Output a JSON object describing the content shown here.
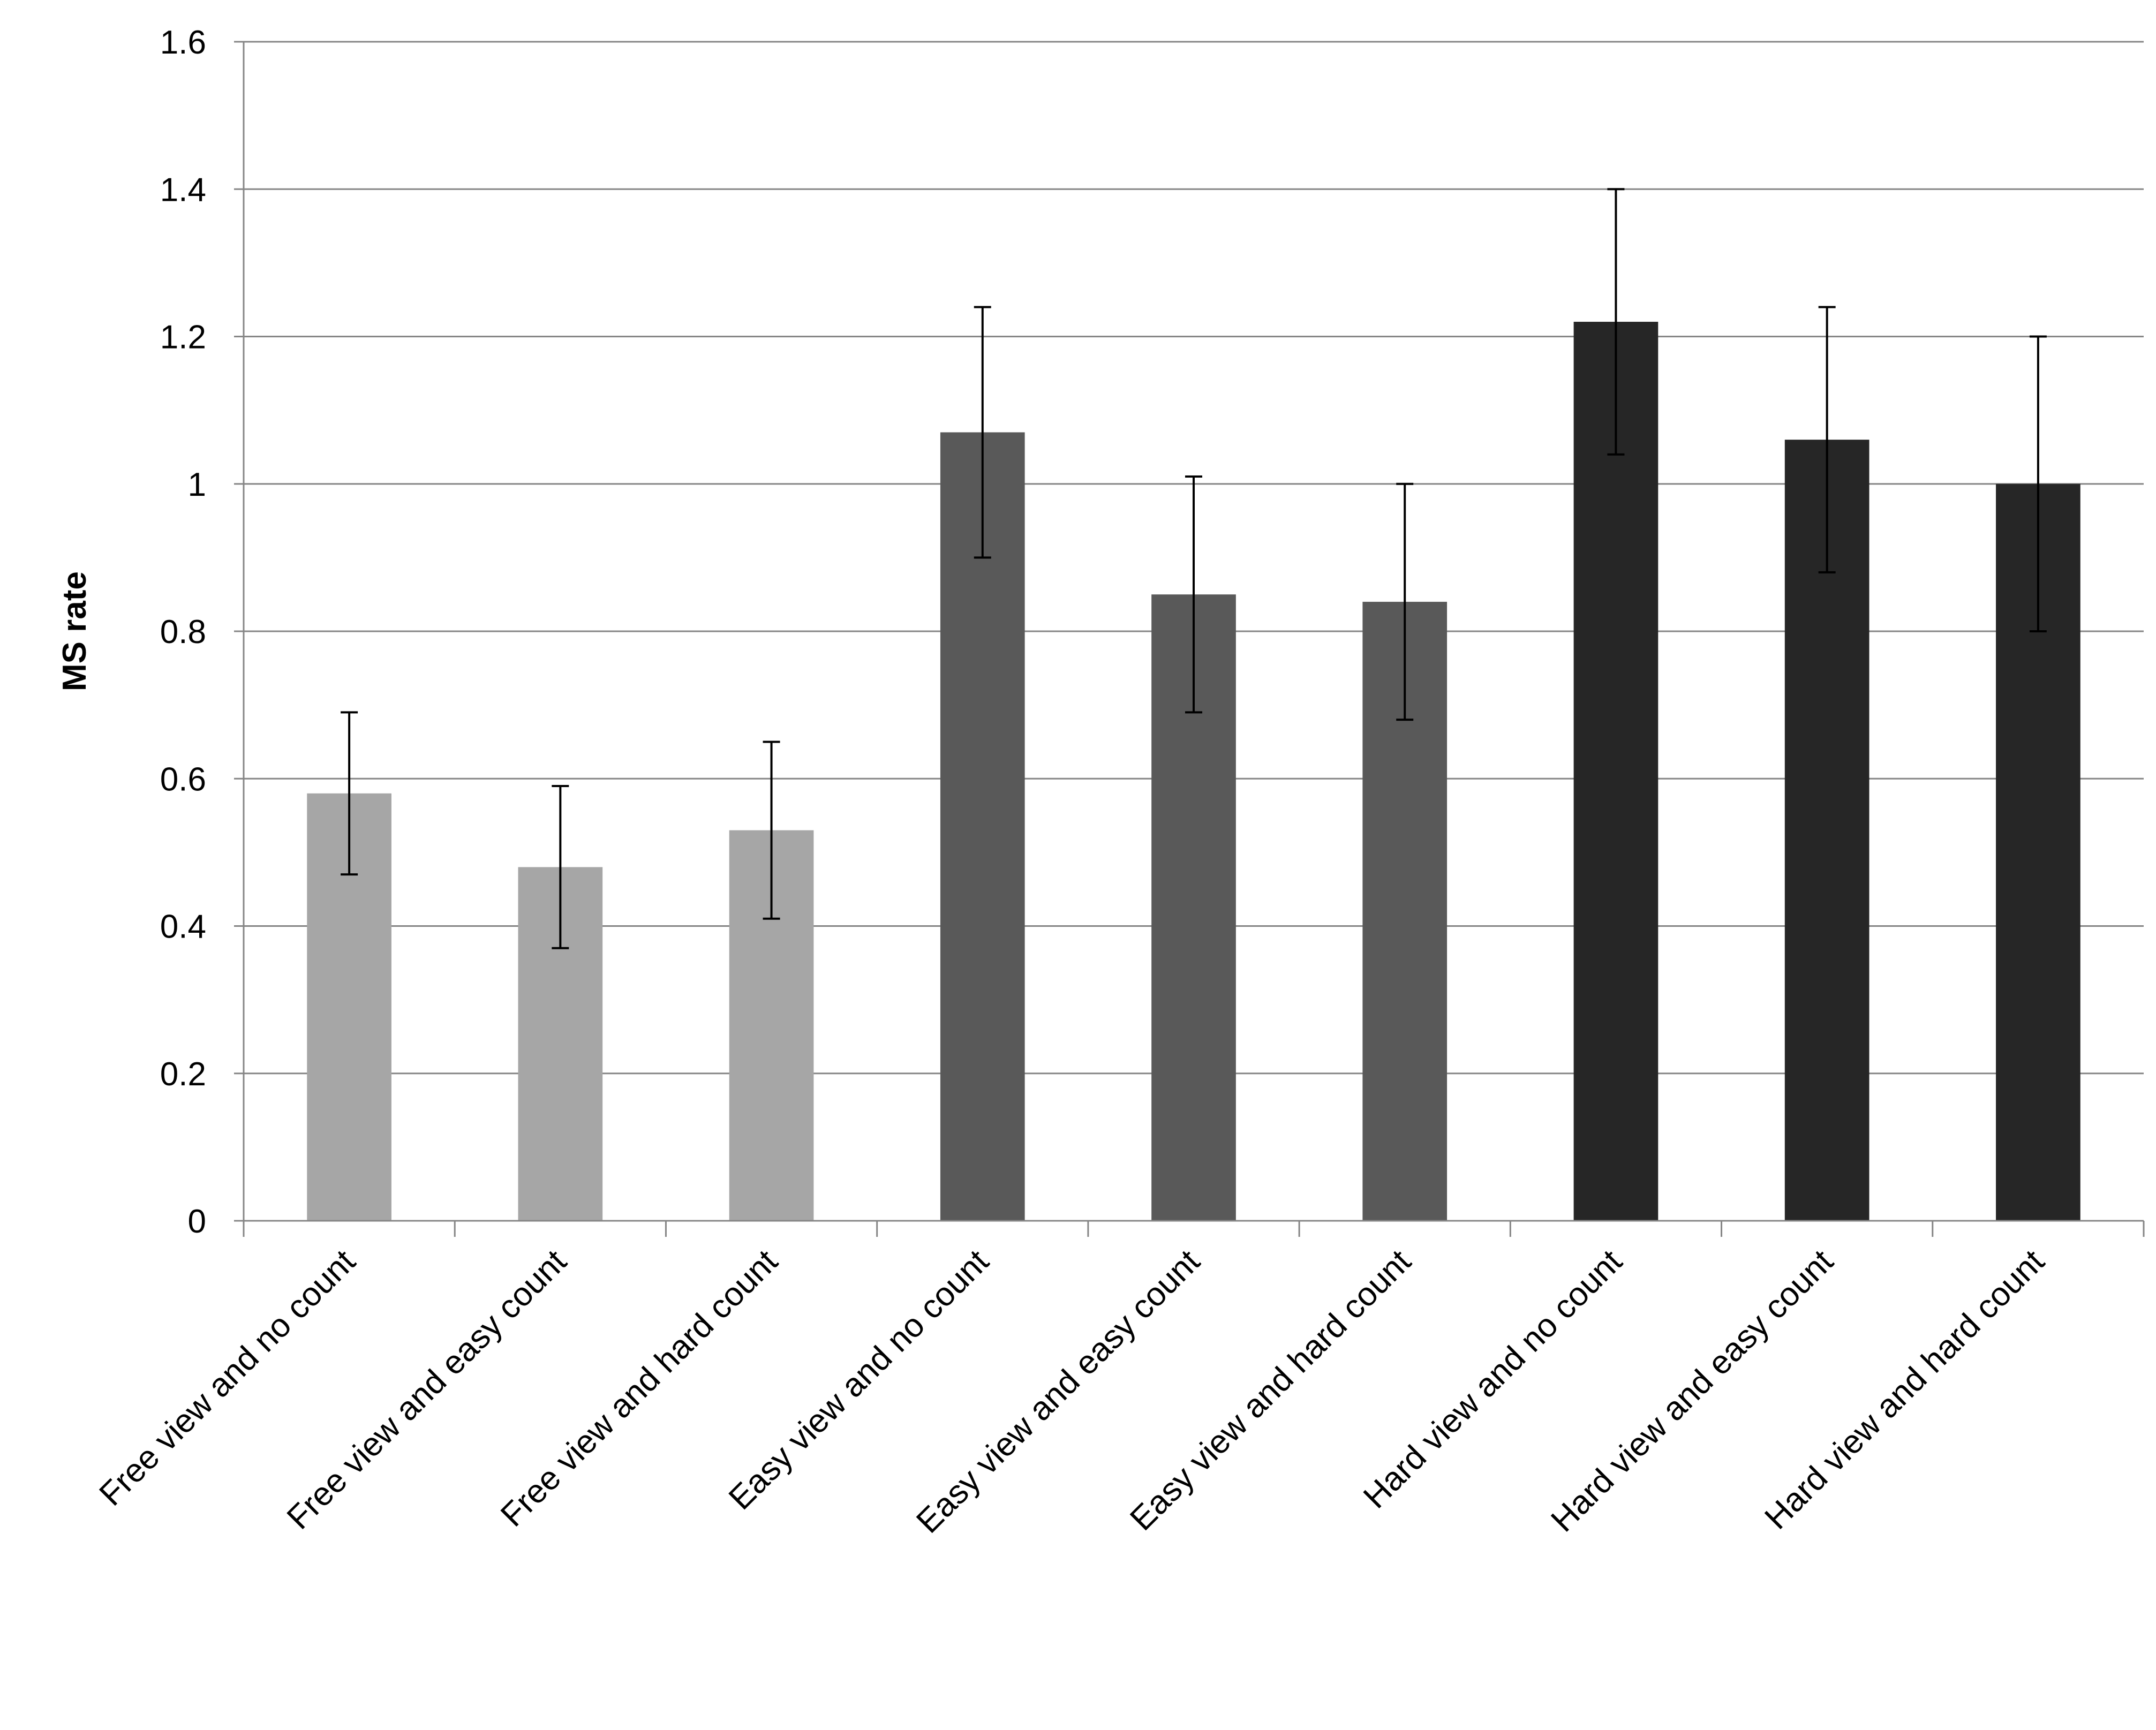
{
  "chart_data": {
    "type": "bar",
    "title": "",
    "xlabel": "",
    "ylabel": "MS rate",
    "ylim": [
      0,
      1.6
    ],
    "yticks": [
      0,
      0.2,
      0.4,
      0.6,
      0.8,
      1,
      1.2,
      1.4,
      1.6
    ],
    "ytick_labels": [
      "0",
      "0.2",
      "0.4",
      "0.6",
      "0.8",
      "1",
      "1.2",
      "1.4",
      "1.6"
    ],
    "grid": "horizontal",
    "legend": "none",
    "categories": [
      "Free view and no count",
      "Free view and easy count",
      "Free view and hard count",
      "Easy view and no count",
      "Easy view and easy count",
      "Easy view and hard count",
      "Hard view and no count",
      "Hard view and easy count",
      "Hard view and hard count"
    ],
    "values": [
      0.58,
      0.48,
      0.53,
      1.07,
      0.85,
      0.84,
      1.22,
      1.06,
      1.0
    ],
    "error_low": [
      0.47,
      0.37,
      0.41,
      0.9,
      0.69,
      0.68,
      1.04,
      0.88,
      0.8
    ],
    "error_high": [
      0.69,
      0.59,
      0.65,
      1.24,
      1.01,
      1.0,
      1.4,
      1.24,
      1.2
    ],
    "bar_colors": [
      "#a6a6a6",
      "#a6a6a6",
      "#a6a6a6",
      "#595959",
      "#595959",
      "#595959",
      "#262626",
      "#262626",
      "#262626"
    ],
    "gridline_color": "#868686",
    "axis_color": "#868686"
  }
}
